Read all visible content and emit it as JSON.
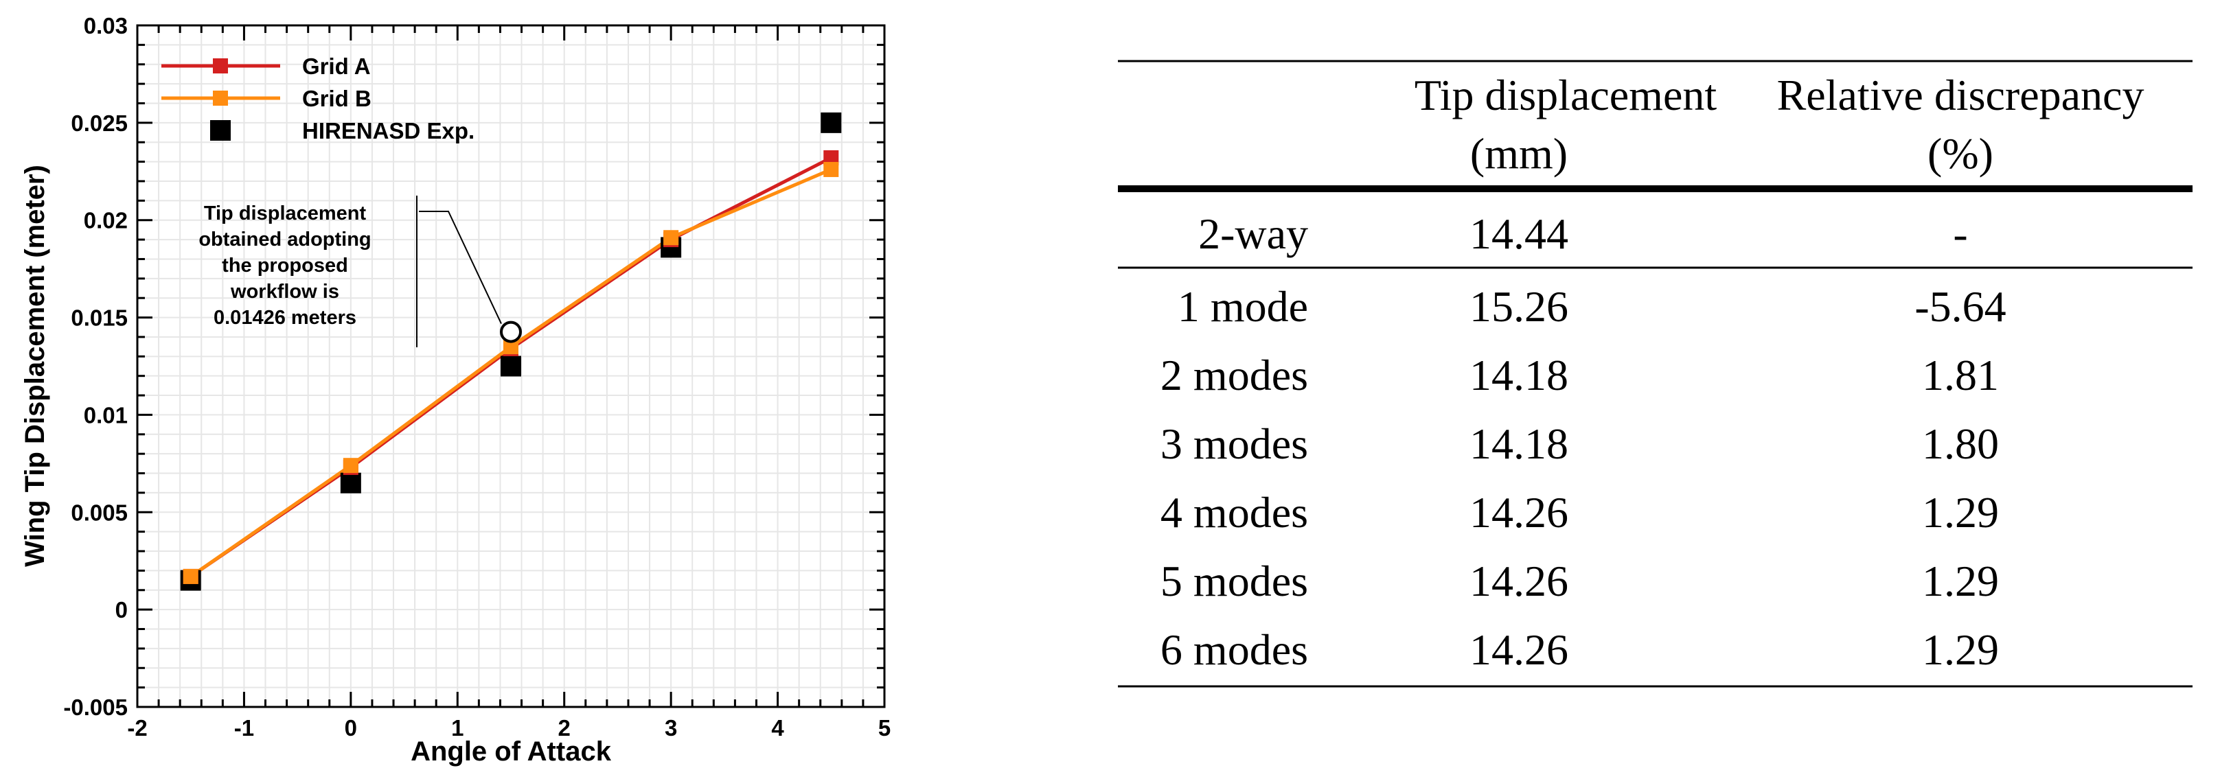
{
  "chart_data": {
    "type": "line",
    "xlabel": "Angle of Attack",
    "ylabel": "Wing Tip Displacement (meter)",
    "xlim": [
      -2,
      5
    ],
    "ylim": [
      -0.005,
      0.03
    ],
    "xticks": [
      -2,
      -1,
      0,
      1,
      2,
      3,
      4,
      5
    ],
    "xtick_labels": [
      "-2",
      "-1",
      "0",
      "1",
      "2",
      "3",
      "4",
      "5"
    ],
    "yticks": [
      -0.005,
      0,
      0.005,
      0.01,
      0.015,
      0.02,
      0.025,
      0.03
    ],
    "ytick_labels": [
      "-0.005",
      "0",
      "0.005",
      "0.01",
      "0.015",
      "0.02",
      "0.025",
      "0.03"
    ],
    "grid": true,
    "legend_position": "top-left",
    "series": [
      {
        "name": "Grid A",
        "color": "#d42020",
        "marker": "square",
        "line": true,
        "x": [
          -1.5,
          0,
          1.5,
          3,
          4.5
        ],
        "y": [
          0.0017,
          0.0073,
          0.0134,
          0.019,
          0.0232
        ]
      },
      {
        "name": "Grid B",
        "color": "#ff8c10",
        "marker": "square",
        "line": true,
        "x": [
          -1.5,
          0,
          1.5,
          3,
          4.5
        ],
        "y": [
          0.0017,
          0.0074,
          0.0135,
          0.0191,
          0.0226
        ]
      },
      {
        "name": "HIRENASD Exp.",
        "color": "#000000",
        "marker": "square",
        "line": false,
        "x": [
          -1.5,
          0,
          1.5,
          3,
          4.5
        ],
        "y": [
          0.0015,
          0.0065,
          0.0125,
          0.0186,
          0.025
        ]
      }
    ],
    "highlight_point": {
      "x": 1.5,
      "y": 0.01426
    },
    "annotation": {
      "lines": [
        "Tip displacement",
        "obtained adopting",
        "the proposed",
        "workflow is",
        "0.01426 meters"
      ]
    }
  },
  "table": {
    "headers": [
      {
        "line1": "",
        "line2": ""
      },
      {
        "line1": "Tip displacement",
        "line2": "(mm)"
      },
      {
        "line1": "Relative discrepancy",
        "line2": "(%)"
      }
    ],
    "rows": [
      [
        "2-way",
        "14.44",
        "-"
      ],
      [
        "1 mode",
        "15.26",
        "-5.64"
      ],
      [
        "2 modes",
        "14.18",
        "1.81"
      ],
      [
        "3 modes",
        "14.18",
        "1.80"
      ],
      [
        "4 modes",
        "14.26",
        "1.29"
      ],
      [
        "5 modes",
        "14.26",
        "1.29"
      ],
      [
        "6 modes",
        "14.26",
        "1.29"
      ]
    ]
  }
}
